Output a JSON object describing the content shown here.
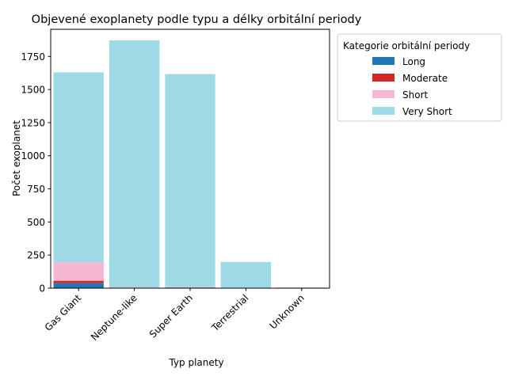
{
  "chart_data": {
    "type": "bar",
    "stacked": true,
    "title": "Objevené exoplanety podle typu a délky orbitální periody",
    "xlabel": "Typ planety",
    "ylabel": "Počet exoplanet",
    "categories": [
      "Gas Giant",
      "Neptune-like",
      "Super Earth",
      "Terrestrial",
      "Unknown"
    ],
    "series": [
      {
        "name": "Long",
        "color": "#1f77b4",
        "values": [
          38,
          0,
          0,
          0,
          0
        ]
      },
      {
        "name": "Moderate",
        "color": "#d62728",
        "values": [
          18,
          4,
          5,
          1,
          0
        ]
      },
      {
        "name": "Short",
        "color": "#f7b6d2",
        "values": [
          140,
          2,
          2,
          1,
          0
        ]
      },
      {
        "name": "Very Short",
        "color": "#9edae5",
        "values": [
          1434,
          1866,
          1610,
          196,
          5
        ]
      }
    ],
    "ylim": [
      0,
      1955
    ],
    "yticks": [
      0,
      250,
      500,
      750,
      1000,
      1250,
      1500,
      1750
    ],
    "grid": false,
    "legend": {
      "title": "Kategorie orbitální periody",
      "placement": "outside-right-top"
    }
  }
}
